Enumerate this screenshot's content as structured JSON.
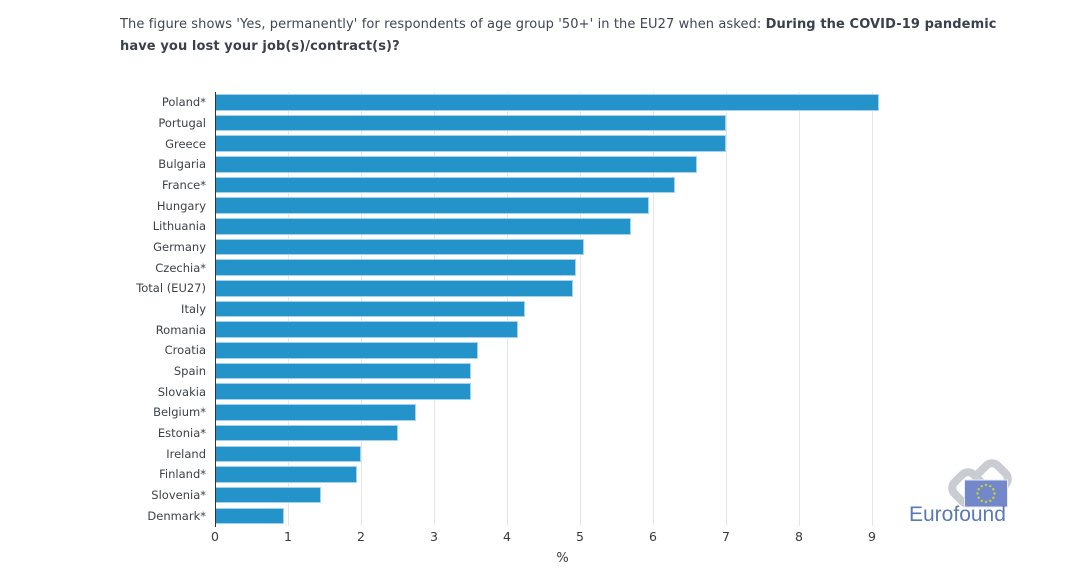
{
  "header": {
    "title_normal": "The figure shows 'Yes, permanently' for respondents of age group '50+' in the EU27 when asked: ",
    "title_bold": "During the COVID-19 pandemic have you lost your job(s)/contract(s)?"
  },
  "chart_data": {
    "type": "bar",
    "orientation": "horizontal",
    "title": "The figure shows 'Yes, permanently' for respondents of age group '50+' in the EU27 when asked: During the COVID-19 pandemic have you lost your job(s)/contract(s)?",
    "categories": [
      "Poland*",
      "Portugal",
      "Greece",
      "Bulgaria",
      "France*",
      "Hungary",
      "Lithuania",
      "Germany",
      "Czechia*",
      "Total (EU27)",
      "Italy",
      "Romania",
      "Croatia",
      "Spain",
      "Slovakia",
      "Belgium*",
      "Estonia*",
      "Ireland",
      "Finland*",
      "Slovenia*",
      "Denmark*"
    ],
    "values": [
      9.1,
      7.0,
      7.0,
      6.6,
      6.3,
      5.95,
      5.7,
      5.05,
      4.95,
      4.9,
      4.25,
      4.15,
      3.6,
      3.5,
      3.5,
      2.75,
      2.5,
      2.0,
      1.95,
      1.45,
      0.95
    ],
    "xlabel": "%",
    "ylabel": "",
    "xticks": [
      0,
      1,
      2,
      3,
      4,
      5,
      6,
      7,
      8,
      9
    ],
    "xlim": [
      0,
      9.52
    ],
    "grid": true,
    "legend": "none",
    "bar_color": "#2493c9",
    "bar_border_color": "#a5d2ee",
    "grid_color": "#e4e7ea",
    "axis_color": "#333333"
  },
  "logo": {
    "text": "Eurofound",
    "text_color": "#5b7ab0",
    "symbol_color": "#c9ccd0",
    "flag_color": "#7288ca",
    "star_color": "#c9d433"
  }
}
